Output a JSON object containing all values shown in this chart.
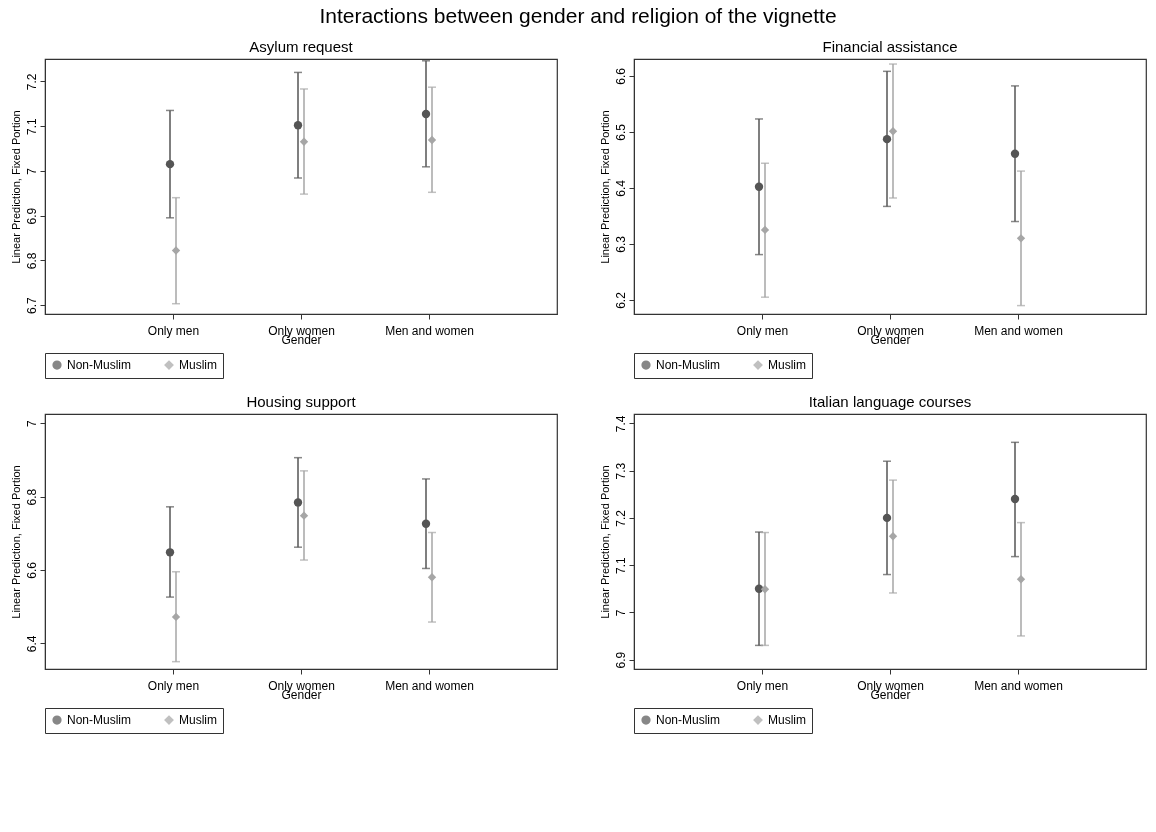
{
  "chart_data": [
    {
      "type": "scatter",
      "annotations": [
        "Interactions between gender and religion of the vignette"
      ],
      "title": "Asylum request",
      "xlabel": "Gender",
      "ylabel": "Linear Prediction, Fixed Portion",
      "categories": [
        "Only men",
        "Only women",
        "Men and women"
      ],
      "ylim": [
        6.68,
        7.25
      ],
      "yticks": [
        6.7,
        6.8,
        6.9,
        7,
        7.1,
        7.2
      ],
      "grid": false,
      "legend": "bottom",
      "series": [
        {
          "name": "Non-Muslim",
          "color": "#555555",
          "marker": "circle",
          "values": [
            7.015,
            7.102,
            7.127
          ],
          "errors": [
            [
              6.895,
              7.135
            ],
            [
              6.984,
              7.22
            ],
            [
              7.009,
              7.246
            ]
          ]
        },
        {
          "name": "Muslim",
          "color": "#a6a6a6",
          "marker": "diamond",
          "values": [
            6.822,
            7.065,
            7.069
          ],
          "errors": [
            [
              6.703,
              6.94
            ],
            [
              6.948,
              7.183
            ],
            [
              6.952,
              7.187
            ]
          ]
        }
      ]
    },
    {
      "type": "scatter",
      "title": "Financial assistance",
      "xlabel": "Gender",
      "ylabel": "Linear Prediction, Fixed Portion",
      "categories": [
        "Only men",
        "Only women",
        "Men and women"
      ],
      "ylim": [
        6.175,
        6.63
      ],
      "yticks": [
        6.2,
        6.3,
        6.4,
        6.5,
        6.6
      ],
      "grid": false,
      "legend": "bottom",
      "series": [
        {
          "name": "Non-Muslim",
          "color": "#555555",
          "marker": "circle",
          "values": [
            6.402,
            6.487,
            6.461
          ],
          "errors": [
            [
              6.281,
              6.523
            ],
            [
              6.367,
              6.608
            ],
            [
              6.34,
              6.582
            ]
          ]
        },
        {
          "name": "Muslim",
          "color": "#a6a6a6",
          "marker": "diamond",
          "values": [
            6.325,
            6.501,
            6.31
          ],
          "errors": [
            [
              6.205,
              6.444
            ],
            [
              6.382,
              6.621
            ],
            [
              6.19,
              6.43
            ]
          ]
        }
      ]
    },
    {
      "type": "scatter",
      "title": "Housing support",
      "xlabel": "Gender",
      "ylabel": "Linear Prediction, Fixed Portion",
      "categories": [
        "Only men",
        "Only women",
        "Men and women"
      ],
      "ylim": [
        6.33,
        7.025
      ],
      "yticks": [
        6.4,
        6.6,
        6.8,
        7
      ],
      "grid": false,
      "legend": "bottom",
      "series": [
        {
          "name": "Non-Muslim",
          "color": "#555555",
          "marker": "circle",
          "values": [
            6.648,
            6.784,
            6.726
          ],
          "errors": [
            [
              6.526,
              6.772
            ],
            [
              6.662,
              6.906
            ],
            [
              6.604,
              6.848
            ]
          ]
        },
        {
          "name": "Muslim",
          "color": "#a6a6a6",
          "marker": "diamond",
          "values": [
            6.472,
            6.748,
            6.58
          ],
          "errors": [
            [
              6.35,
              6.595
            ],
            [
              6.627,
              6.87
            ],
            [
              6.458,
              6.702
            ]
          ]
        }
      ]
    },
    {
      "type": "scatter",
      "title": "Italian language courses",
      "xlabel": "Gender",
      "ylabel": "Linear Prediction, Fixed Portion",
      "categories": [
        "Only men",
        "Only women",
        "Men and women"
      ],
      "ylim": [
        6.88,
        7.42
      ],
      "yticks": [
        6.9,
        7,
        7.1,
        7.2,
        7.3,
        7.4
      ],
      "grid": false,
      "legend": "bottom",
      "series": [
        {
          "name": "Non-Muslim",
          "color": "#555555",
          "marker": "circle",
          "values": [
            7.05,
            7.2,
            7.24
          ],
          "errors": [
            [
              6.93,
              7.17
            ],
            [
              7.08,
              7.32
            ],
            [
              7.118,
              7.36
            ]
          ]
        },
        {
          "name": "Muslim",
          "color": "#a6a6a6",
          "marker": "diamond",
          "values": [
            7.049,
            7.161,
            7.07
          ],
          "errors": [
            [
              6.93,
              7.169
            ],
            [
              7.041,
              7.28
            ],
            [
              6.95,
              7.19
            ]
          ]
        }
      ]
    }
  ]
}
